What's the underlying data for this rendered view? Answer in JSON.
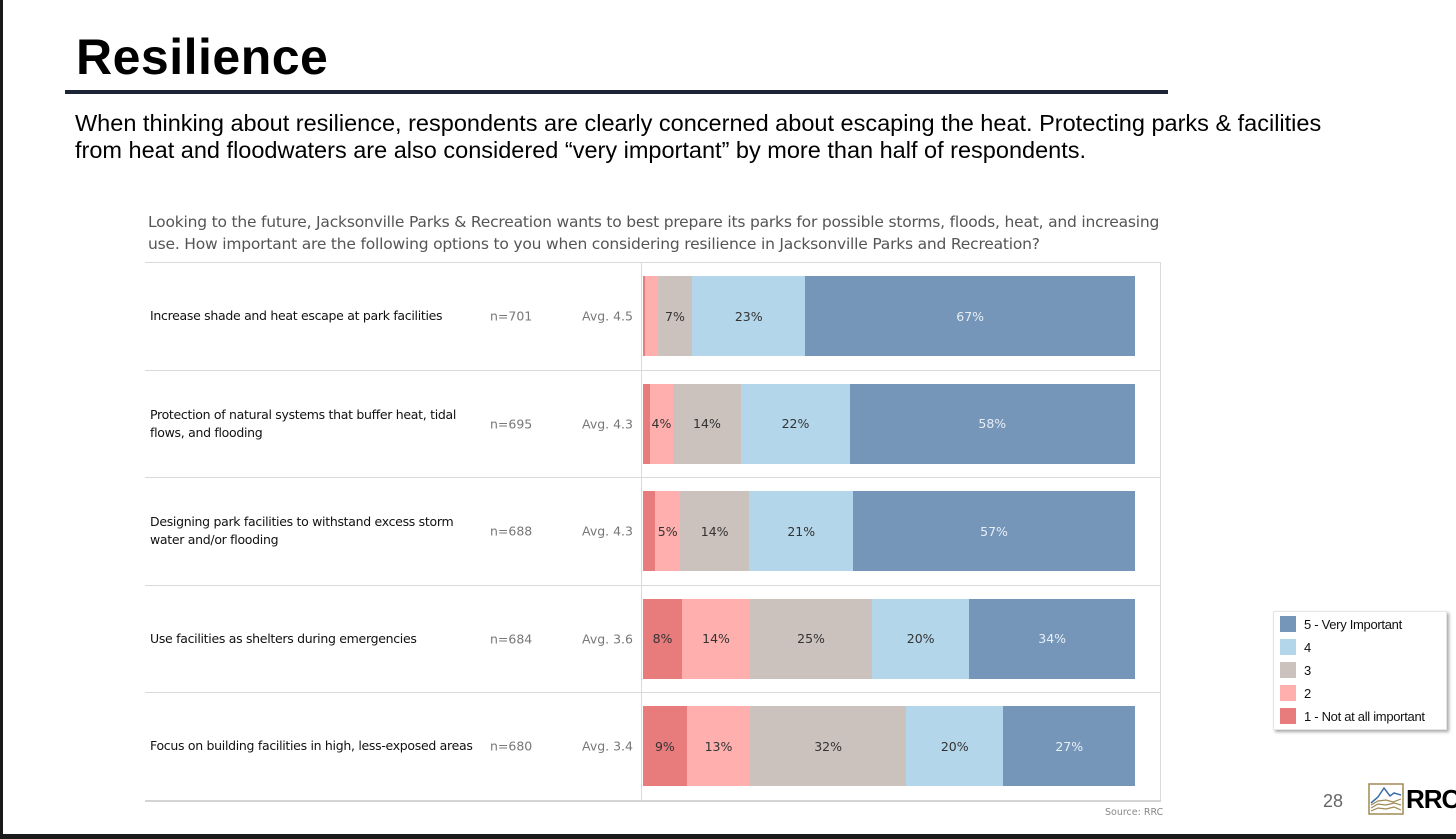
{
  "slide": {
    "title": "Resilience",
    "subtitle": "When thinking about resilience, respondents are clearly concerned about escaping the heat. Protecting parks & facilities from heat and floodwaters are also considered “very important” by more than half of respondents.",
    "page_number": "28",
    "logo_text": "RRC"
  },
  "chart_data": {
    "type": "bar",
    "orientation": "horizontal",
    "stacked": true,
    "normalized": true,
    "title": "Looking to the future, Jacksonville Parks & Recreation wants to best prepare its parks for possible storms, floods, heat, and increasing use. How important are the following options to you when considering resilience in Jacksonville Parks and Recreation?",
    "source": "Source: RRC",
    "xlabel": "",
    "ylabel": "",
    "xlim": [
      0,
      100
    ],
    "grid": false,
    "legend_position": "right",
    "categories": [
      "Increase shade and heat escape at park facilities",
      "Protection of natural systems that buffer heat, tidal flows, and flooding",
      "Designing park facilities to withstand excess storm water and/or flooding",
      "Use facilities as shelters during emergencies",
      "Focus on building facilities in high, less-exposed areas"
    ],
    "n_labels": [
      "n=701",
      "n=695",
      "n=688",
      "n=684",
      "n=680"
    ],
    "avg_labels": [
      "Avg. 4.5",
      "Avg. 4.3",
      "Avg. 4.3",
      "Avg. 3.6",
      "Avg. 3.4"
    ],
    "series": [
      {
        "name": "1 - Not at all important",
        "color": "#e87b7b",
        "text_color": "#333333",
        "values": [
          0.5,
          1.5,
          2.5,
          8,
          9
        ],
        "labels": [
          "",
          "",
          "",
          "8%",
          "9%"
        ]
      },
      {
        "name": "2",
        "color": "#ffb0ae",
        "text_color": "#333333",
        "values": [
          2.5,
          4.5,
          5,
          14,
          13
        ],
        "labels": [
          "",
          "4%",
          "5%",
          "14%",
          "13%"
        ]
      },
      {
        "name": "3",
        "color": "#cbc1bd",
        "text_color": "#333333",
        "values": [
          7,
          14,
          14,
          25,
          32
        ],
        "labels": [
          "7%",
          "14%",
          "14%",
          "25%",
          "32%"
        ]
      },
      {
        "name": "4",
        "color": "#b4d6ea",
        "text_color": "#333333",
        "values": [
          23,
          22,
          21,
          20,
          20
        ],
        "labels": [
          "23%",
          "22%",
          "21%",
          "20%",
          "20%"
        ]
      },
      {
        "name": "5 - Very Important",
        "color": "#7596b9",
        "text_color": "#e8eef5",
        "values": [
          67,
          58,
          57,
          34,
          27
        ],
        "labels": [
          "67%",
          "58%",
          "57%",
          "34%",
          "27%"
        ]
      }
    ]
  },
  "legend": {
    "items": [
      {
        "label": "5 - Very Important",
        "color": "#7596b9"
      },
      {
        "label": "4",
        "color": "#b4d6ea"
      },
      {
        "label": "3",
        "color": "#cbc1bd"
      },
      {
        "label": "2",
        "color": "#ffb0ae"
      },
      {
        "label": "1 - Not at all important",
        "color": "#e87b7b"
      }
    ]
  }
}
